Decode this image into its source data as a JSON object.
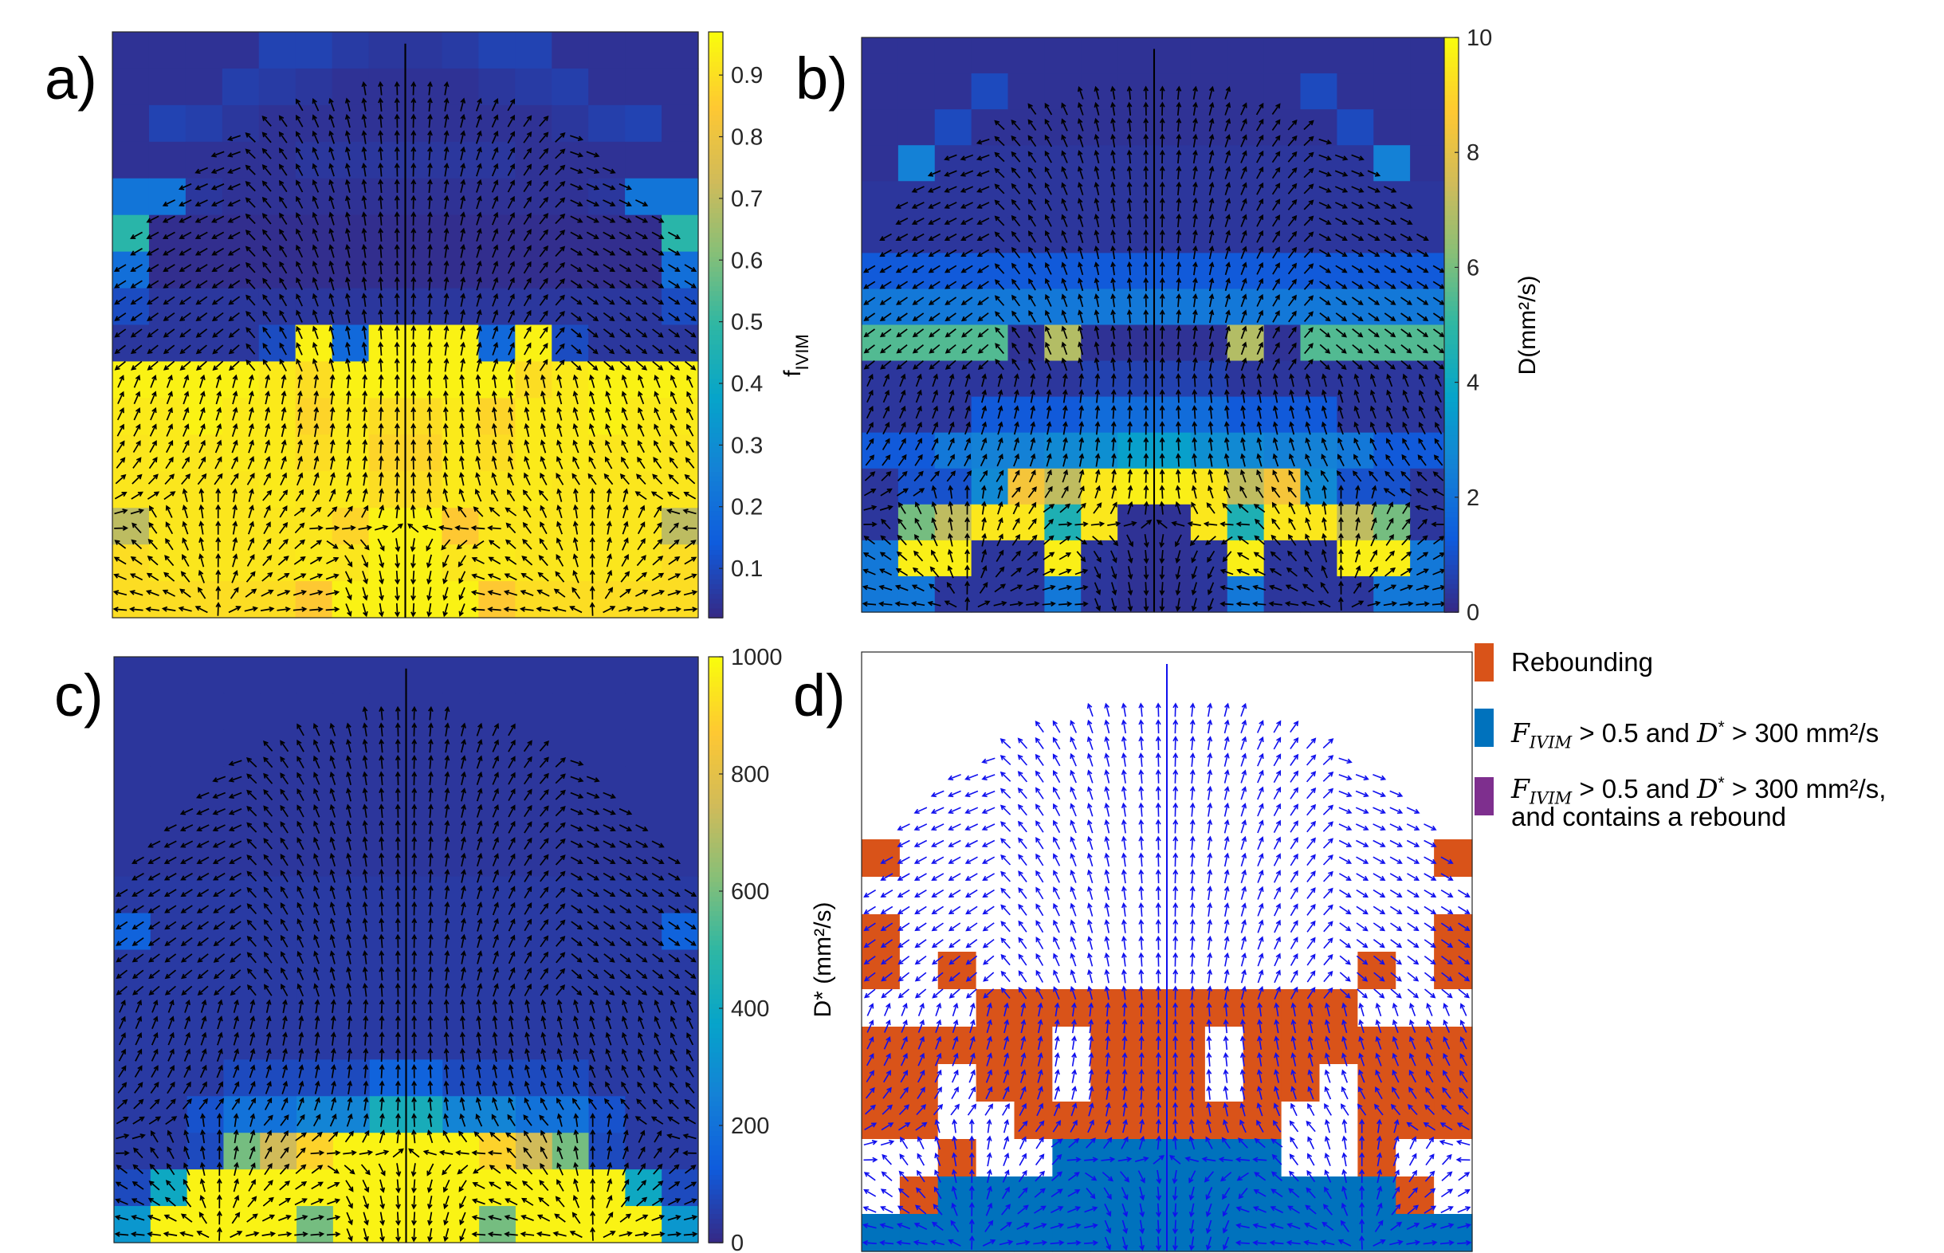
{
  "panels": [
    {
      "letter": "a)",
      "colorbar_label_main": "f",
      "colorbar_label_sub": "IVIM"
    },
    {
      "letter": "b)",
      "colorbar_label": "D(mm²/s)"
    },
    {
      "letter": "c)",
      "colorbar_label": "D* (mm²/s)"
    },
    {
      "letter": "d)"
    }
  ],
  "colors": {
    "parula": [
      "#352a87",
      "#0f5cdd",
      "#1481d6",
      "#06a4ca",
      "#2eb7a4",
      "#87bf77",
      "#d1bb59",
      "#fec832",
      "#f9fb0e"
    ],
    "rebounding": "#d95319",
    "condition": "#0072bd",
    "both": "#7e2f8e",
    "arrow_dark": "#000000",
    "arrow_blue": "#1010ee"
  },
  "legend": {
    "items": [
      {
        "label": "Rebounding",
        "color": "#d95319"
      },
      {
        "label_var": "F",
        "label_var_sub": "IVIM",
        "label_mid": " > 0.5 and ",
        "label_var2": "D",
        "label_var2_sup": "*",
        "label_end": " > 300 mm²/s",
        "color": "#0072bd"
      },
      {
        "label_var": "F",
        "label_var_sub": "IVIM",
        "label_mid": " > 0.5 and ",
        "label_var2": "D",
        "label_var2_sup": "*",
        "label_end": " > 300 mm²/s,",
        "label_line2": "and contains a rebound",
        "color": "#7e2f8e"
      }
    ]
  },
  "chart_data": [
    {
      "type": "heatmap",
      "panel": "a",
      "grid": {
        "cols": 16,
        "rows": 16
      },
      "colorbar": {
        "min": 0.02,
        "max": 0.97,
        "ticks": [
          0.1,
          0.2,
          0.3,
          0.4,
          0.5,
          0.6,
          0.7,
          0.8,
          0.9
        ],
        "tick_labels": [
          "0.1",
          "0.2",
          "0.3",
          "0.4",
          "0.5",
          "0.6",
          "0.7",
          "0.8",
          "0.9"
        ]
      },
      "values": [
        [
          0.04,
          0.04,
          0.04,
          0.04,
          0.08,
          0.08,
          0.06,
          0.05,
          0.05,
          0.06,
          0.08,
          0.08,
          0.04,
          0.04,
          0.04,
          0.04
        ],
        [
          0.04,
          0.04,
          0.04,
          0.07,
          0.06,
          0.05,
          0.04,
          0.04,
          0.04,
          0.04,
          0.05,
          0.06,
          0.07,
          0.04,
          0.04,
          0.04
        ],
        [
          0.04,
          0.08,
          0.07,
          0.05,
          0.04,
          0.04,
          0.04,
          0.04,
          0.04,
          0.04,
          0.04,
          0.04,
          0.05,
          0.07,
          0.08,
          0.04
        ],
        [
          0.04,
          0.04,
          0.04,
          0.04,
          0.04,
          0.05,
          0.05,
          0.05,
          0.05,
          0.05,
          0.05,
          0.04,
          0.04,
          0.04,
          0.04,
          0.04
        ],
        [
          0.22,
          0.22,
          0.05,
          0.04,
          0.04,
          0.04,
          0.04,
          0.04,
          0.04,
          0.04,
          0.04,
          0.04,
          0.04,
          0.05,
          0.22,
          0.22
        ],
        [
          0.48,
          0.03,
          0.03,
          0.03,
          0.03,
          0.03,
          0.03,
          0.03,
          0.03,
          0.03,
          0.03,
          0.03,
          0.03,
          0.03,
          0.03,
          0.48
        ],
        [
          0.2,
          0.03,
          0.03,
          0.03,
          0.03,
          0.03,
          0.03,
          0.03,
          0.03,
          0.03,
          0.03,
          0.03,
          0.03,
          0.03,
          0.03,
          0.2
        ],
        [
          0.1,
          0.05,
          0.05,
          0.05,
          0.05,
          0.05,
          0.05,
          0.05,
          0.05,
          0.05,
          0.05,
          0.05,
          0.05,
          0.05,
          0.05,
          0.1
        ],
        [
          0.05,
          0.05,
          0.05,
          0.05,
          0.1,
          0.95,
          0.18,
          0.95,
          0.95,
          0.95,
          0.18,
          0.95,
          0.1,
          0.05,
          0.05,
          0.05
        ],
        [
          0.95,
          0.95,
          0.95,
          0.95,
          0.93,
          0.9,
          0.95,
          0.95,
          0.95,
          0.95,
          0.95,
          0.9,
          0.93,
          0.95,
          0.95,
          0.95
        ],
        [
          0.93,
          0.93,
          0.95,
          0.93,
          0.93,
          0.88,
          0.93,
          0.9,
          0.9,
          0.93,
          0.88,
          0.93,
          0.93,
          0.95,
          0.93,
          0.93
        ],
        [
          0.92,
          0.93,
          0.92,
          0.93,
          0.93,
          0.9,
          0.93,
          0.88,
          0.88,
          0.93,
          0.9,
          0.93,
          0.93,
          0.92,
          0.93,
          0.92
        ],
        [
          0.92,
          0.92,
          0.92,
          0.92,
          0.93,
          0.92,
          0.93,
          0.9,
          0.9,
          0.93,
          0.92,
          0.93,
          0.92,
          0.92,
          0.92,
          0.92
        ],
        [
          0.7,
          0.92,
          0.92,
          0.92,
          0.92,
          0.92,
          0.88,
          0.95,
          0.95,
          0.85,
          0.92,
          0.92,
          0.92,
          0.92,
          0.92,
          0.7
        ],
        [
          0.9,
          0.92,
          0.92,
          0.92,
          0.92,
          0.93,
          0.92,
          0.95,
          0.95,
          0.92,
          0.93,
          0.92,
          0.92,
          0.92,
          0.92,
          0.9
        ],
        [
          0.9,
          0.9,
          0.9,
          0.9,
          0.9,
          0.85,
          0.95,
          0.95,
          0.95,
          0.95,
          0.85,
          0.9,
          0.9,
          0.9,
          0.9,
          0.9
        ]
      ]
    },
    {
      "type": "heatmap",
      "panel": "b",
      "grid": {
        "cols": 16,
        "rows": 16
      },
      "colorbar": {
        "min": 0,
        "max": 10,
        "ticks": [
          0,
          2,
          4,
          6,
          8,
          10
        ],
        "tick_labels": [
          "0",
          "2",
          "4",
          "6",
          "8",
          "10"
        ]
      },
      "values": [
        [
          0.2,
          0.2,
          0.2,
          0.2,
          0.2,
          0.2,
          0.2,
          0.2,
          0.2,
          0.2,
          0.2,
          0.2,
          0.2,
          0.2,
          0.2,
          0.2
        ],
        [
          0.2,
          0.2,
          0.2,
          0.8,
          0.2,
          0.2,
          0.2,
          0.2,
          0.2,
          0.2,
          0.2,
          0.2,
          0.8,
          0.2,
          0.2,
          0.2
        ],
        [
          0.2,
          0.2,
          0.8,
          0.2,
          0.2,
          0.2,
          0.2,
          0.2,
          0.2,
          0.2,
          0.2,
          0.2,
          0.2,
          0.8,
          0.2,
          0.2
        ],
        [
          0.2,
          2.5,
          0.3,
          0.3,
          0.3,
          0.3,
          0.3,
          0.3,
          0.3,
          0.3,
          0.3,
          0.3,
          0.3,
          0.3,
          2.5,
          0.2
        ],
        [
          0.3,
          0.3,
          0.3,
          0.3,
          0.3,
          0.3,
          0.3,
          0.3,
          0.3,
          0.3,
          0.3,
          0.3,
          0.3,
          0.3,
          0.3,
          0.3
        ],
        [
          0.3,
          0.3,
          0.3,
          0.3,
          0.3,
          0.3,
          0.3,
          0.3,
          0.3,
          0.3,
          0.3,
          0.3,
          0.3,
          0.3,
          0.3,
          0.3
        ],
        [
          1.2,
          1.2,
          1.2,
          1.2,
          1.2,
          1.2,
          1.2,
          1.2,
          1.2,
          1.2,
          1.2,
          1.2,
          1.2,
          1.2,
          1.2,
          1.2
        ],
        [
          2.2,
          2.2,
          2.2,
          2.2,
          2.2,
          2.2,
          2.2,
          2.2,
          2.2,
          2.2,
          2.2,
          2.2,
          2.2,
          2.2,
          2.2,
          2.2
        ],
        [
          5.5,
          5.5,
          5.5,
          5.5,
          0.2,
          7,
          0.2,
          0.2,
          0.2,
          0.2,
          7,
          0.2,
          5.5,
          5.5,
          5.5,
          5.5
        ],
        [
          0.3,
          0.3,
          0.3,
          0.3,
          0.3,
          0.3,
          0.6,
          0.6,
          0.6,
          0.6,
          0.3,
          0.3,
          0.3,
          0.3,
          0.3,
          0.3
        ],
        [
          0.3,
          0.3,
          0.3,
          1.2,
          1.2,
          1.2,
          1.8,
          1.8,
          1.8,
          1.8,
          1.2,
          1.2,
          1.2,
          0.3,
          0.3,
          0.3
        ],
        [
          1.2,
          1.2,
          2.2,
          2.5,
          2.5,
          2.8,
          3,
          3.6,
          3.6,
          3,
          2.8,
          2.5,
          2.5,
          2.2,
          1.2,
          1.2
        ],
        [
          0.3,
          1,
          1,
          2.8,
          8.5,
          7.2,
          9.5,
          9.7,
          9.7,
          9.5,
          7.2,
          8.5,
          2.8,
          1,
          1,
          0.3
        ],
        [
          0.3,
          6,
          7.2,
          9.5,
          9.5,
          4.5,
          9.5,
          0.2,
          0.2,
          9.5,
          4.5,
          9.5,
          9.5,
          7.2,
          6,
          0.3
        ],
        [
          2.2,
          9.7,
          9.7,
          0.3,
          0.3,
          9.7,
          0.3,
          0.2,
          0.2,
          0.3,
          9.7,
          0.3,
          0.3,
          9.7,
          9.7,
          2.2
        ],
        [
          2.2,
          2.2,
          0.3,
          0.3,
          0.3,
          2.2,
          0.3,
          0.2,
          0.2,
          0.3,
          2.2,
          0.3,
          0.3,
          0.3,
          2.2,
          2.2
        ]
      ]
    },
    {
      "type": "heatmap",
      "panel": "c",
      "grid": {
        "cols": 16,
        "rows": 16
      },
      "colorbar": {
        "min": 0,
        "max": 1000,
        "ticks": [
          0,
          200,
          400,
          600,
          800,
          1000
        ],
        "tick_labels": [
          "0",
          "200",
          "400",
          "600",
          "800",
          "1000"
        ]
      },
      "values": [
        [
          30,
          30,
          30,
          30,
          30,
          30,
          30,
          30,
          30,
          30,
          30,
          30,
          30,
          30,
          30,
          30
        ],
        [
          30,
          30,
          30,
          30,
          30,
          30,
          30,
          30,
          30,
          30,
          30,
          30,
          30,
          30,
          30,
          30
        ],
        [
          30,
          30,
          30,
          30,
          30,
          30,
          30,
          30,
          30,
          30,
          30,
          30,
          30,
          30,
          30,
          30
        ],
        [
          30,
          30,
          30,
          30,
          30,
          30,
          30,
          30,
          30,
          30,
          30,
          30,
          30,
          30,
          30,
          30
        ],
        [
          30,
          30,
          30,
          30,
          30,
          30,
          30,
          30,
          30,
          30,
          30,
          30,
          30,
          30,
          30,
          30
        ],
        [
          30,
          30,
          30,
          30,
          30,
          30,
          30,
          30,
          30,
          30,
          30,
          30,
          30,
          30,
          30,
          30
        ],
        [
          40,
          40,
          40,
          40,
          40,
          40,
          40,
          40,
          40,
          40,
          40,
          40,
          40,
          40,
          40,
          40
        ],
        [
          150,
          40,
          40,
          40,
          40,
          40,
          40,
          40,
          40,
          40,
          40,
          40,
          40,
          40,
          40,
          150
        ],
        [
          40,
          40,
          40,
          40,
          40,
          40,
          40,
          40,
          40,
          40,
          40,
          40,
          40,
          40,
          40,
          40
        ],
        [
          40,
          40,
          40,
          40,
          40,
          40,
          40,
          40,
          40,
          40,
          40,
          40,
          40,
          40,
          40,
          40
        ],
        [
          40,
          40,
          40,
          40,
          40,
          40,
          40,
          40,
          40,
          40,
          40,
          40,
          40,
          40,
          40,
          40
        ],
        [
          40,
          40,
          40,
          80,
          80,
          80,
          80,
          150,
          150,
          80,
          80,
          80,
          80,
          40,
          40,
          40
        ],
        [
          40,
          40,
          100,
          200,
          200,
          260,
          260,
          430,
          430,
          260,
          260,
          200,
          200,
          100,
          40,
          40
        ],
        [
          40,
          40,
          80,
          600,
          750,
          900,
          980,
          980,
          980,
          980,
          900,
          750,
          600,
          80,
          40,
          40
        ],
        [
          80,
          400,
          980,
          980,
          980,
          980,
          980,
          980,
          980,
          980,
          980,
          980,
          980,
          980,
          400,
          80
        ],
        [
          330,
          980,
          980,
          980,
          980,
          600,
          980,
          980,
          980,
          980,
          600,
          980,
          980,
          980,
          980,
          330
        ]
      ]
    },
    {
      "type": "heatmap",
      "panel": "d",
      "grid": {
        "cols": 16,
        "rows": 16
      },
      "categories": [
        "none",
        "Rebounding",
        "condition"
      ],
      "values": [
        [
          0,
          0,
          0,
          0,
          0,
          0,
          0,
          0,
          0,
          0,
          0,
          0,
          0,
          0,
          0,
          0
        ],
        [
          0,
          0,
          0,
          0,
          0,
          0,
          0,
          0,
          0,
          0,
          0,
          0,
          0,
          0,
          0,
          0
        ],
        [
          0,
          0,
          0,
          0,
          0,
          0,
          0,
          0,
          0,
          0,
          0,
          0,
          0,
          0,
          0,
          0
        ],
        [
          0,
          0,
          0,
          0,
          0,
          0,
          0,
          0,
          0,
          0,
          0,
          0,
          0,
          0,
          0,
          0
        ],
        [
          0,
          0,
          0,
          0,
          0,
          0,
          0,
          0,
          0,
          0,
          0,
          0,
          0,
          0,
          0,
          0
        ],
        [
          1,
          0,
          0,
          0,
          0,
          0,
          0,
          0,
          0,
          0,
          0,
          0,
          0,
          0,
          0,
          1
        ],
        [
          0,
          0,
          0,
          0,
          0,
          0,
          0,
          0,
          0,
          0,
          0,
          0,
          0,
          0,
          0,
          0
        ],
        [
          1,
          0,
          0,
          0,
          0,
          0,
          0,
          0,
          0,
          0,
          0,
          0,
          0,
          0,
          0,
          1
        ],
        [
          1,
          0,
          1,
          0,
          0,
          0,
          0,
          0,
          0,
          0,
          0,
          0,
          0,
          1,
          0,
          1
        ],
        [
          0,
          0,
          0,
          1,
          1,
          1,
          1,
          1,
          1,
          1,
          1,
          1,
          1,
          0,
          0,
          0
        ],
        [
          1,
          1,
          1,
          1,
          1,
          0,
          1,
          1,
          1,
          0,
          1,
          1,
          1,
          1,
          1,
          1
        ],
        [
          1,
          1,
          0,
          1,
          1,
          0,
          1,
          1,
          1,
          0,
          1,
          1,
          0,
          1,
          1,
          1
        ],
        [
          1,
          1,
          0,
          0,
          1,
          1,
          1,
          1,
          1,
          1,
          1,
          0,
          0,
          1,
          1,
          1
        ],
        [
          0,
          0,
          1,
          0,
          0,
          2,
          2,
          2,
          2,
          2,
          2,
          0,
          0,
          1,
          0,
          0
        ],
        [
          0,
          1,
          2,
          2,
          2,
          2,
          2,
          2,
          2,
          2,
          2,
          2,
          2,
          2,
          1,
          0
        ],
        [
          2,
          2,
          2,
          2,
          2,
          2,
          2,
          2,
          2,
          2,
          2,
          2,
          2,
          2,
          2,
          2
        ]
      ]
    }
  ]
}
